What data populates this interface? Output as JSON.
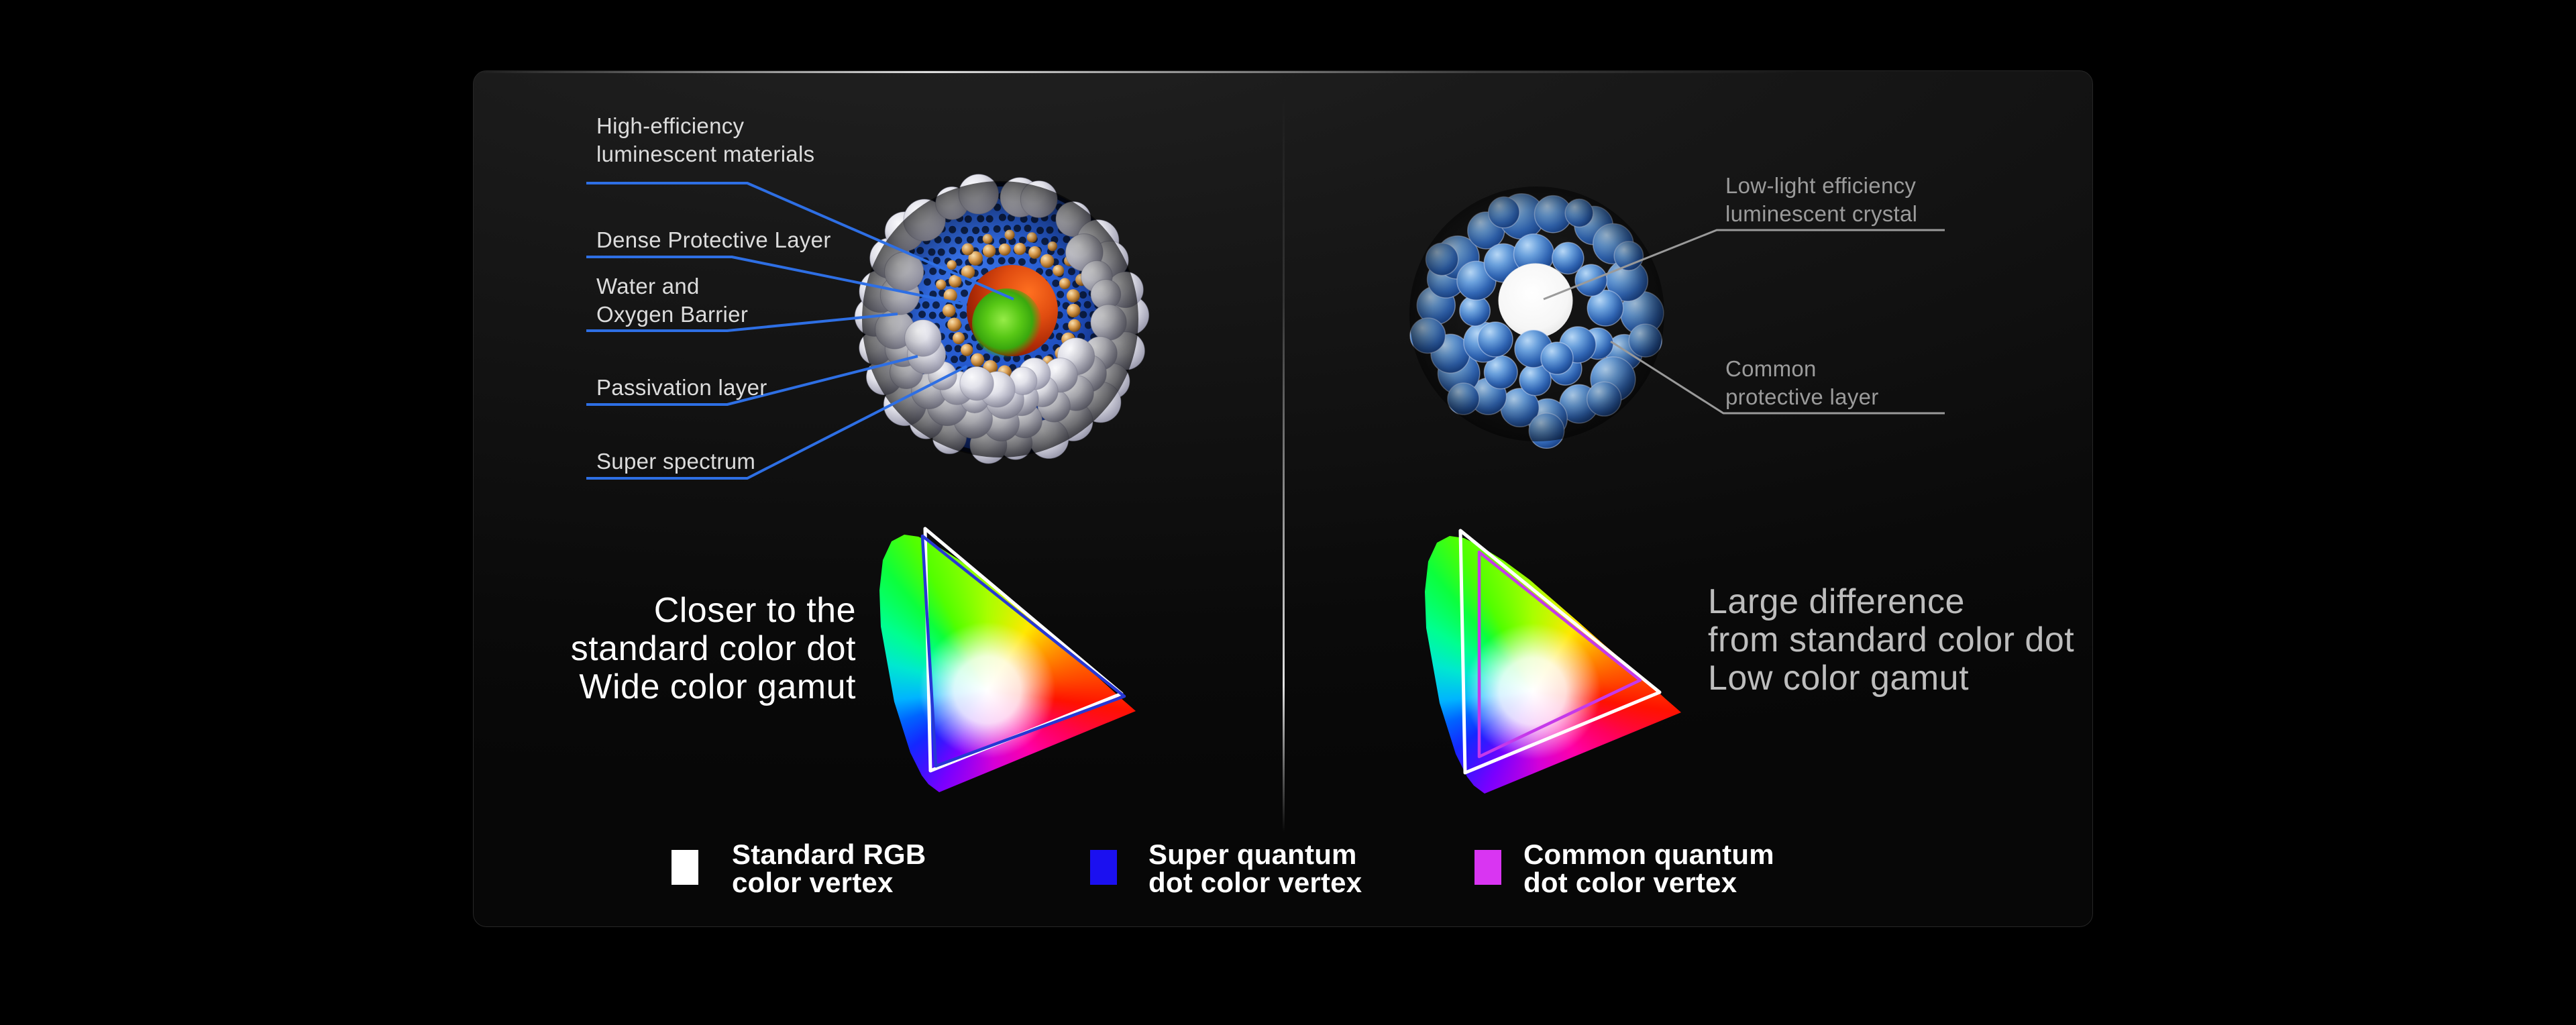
{
  "left_panel": {
    "labels": [
      {
        "lines": [
          "High-efficiency",
          "luminescent materials"
        ]
      },
      {
        "lines": [
          "Dense Protective Layer"
        ]
      },
      {
        "lines": [
          "Water and",
          "Oxygen Barrier"
        ]
      },
      {
        "lines": [
          "Passivation layer"
        ]
      },
      {
        "lines": [
          "Super spectrum"
        ]
      }
    ],
    "caption_lines": [
      "Closer to the",
      "standard color dot",
      "Wide color gamut"
    ]
  },
  "right_panel": {
    "labels": [
      {
        "lines": [
          "Low-light efficiency",
          "luminescent crystal"
        ]
      },
      {
        "lines": [
          "Common",
          "protective layer"
        ]
      }
    ],
    "caption_lines": [
      "Large difference",
      "from standard color dot",
      "Low color gamut"
    ]
  },
  "legend": {
    "items": [
      {
        "swatch_color": "#ffffff",
        "lines": [
          "Standard RGB",
          "color vertex"
        ]
      },
      {
        "swatch_color": "#1b10f0",
        "lines": [
          "Super quantum",
          "dot color vertex"
        ]
      },
      {
        "swatch_color": "#d935f2",
        "lines": [
          "Common quantum",
          "dot color vertex"
        ]
      }
    ]
  },
  "colors": {
    "left_connector_line": "#2e6fe4",
    "right_connector_line": "#9a9a9a",
    "standard_triangle": "#ffffff",
    "super_triangle": "#2737d4",
    "common_triangle": "#c539ea"
  },
  "chart_data": [
    {
      "type": "chromaticity_gamut",
      "side": "left",
      "triangles": [
        {
          "name": "Standard RGB color vertex",
          "color": "#ffffff",
          "vertices": [
            [
              70,
              22
            ],
            [
              363,
              268
            ],
            [
              78,
              383
            ]
          ]
        },
        {
          "name": "Super quantum dot color vertex",
          "color": "#2737d4",
          "vertices": [
            [
              66,
              33
            ],
            [
              367,
              272
            ],
            [
              86,
              376
            ]
          ]
        }
      ]
    },
    {
      "type": "chromaticity_gamut",
      "side": "right",
      "triangles": [
        {
          "name": "Standard RGB color vertex",
          "color": "#ffffff",
          "vertices": [
            [
              55,
              23
            ],
            [
              352,
              264
            ],
            [
              62,
              384
            ]
          ]
        },
        {
          "name": "Common quantum dot color vertex",
          "color": "#c539ea",
          "vertices": [
            [
              83,
              55
            ],
            [
              323,
              246
            ],
            [
              83,
              360
            ]
          ]
        }
      ]
    }
  ]
}
